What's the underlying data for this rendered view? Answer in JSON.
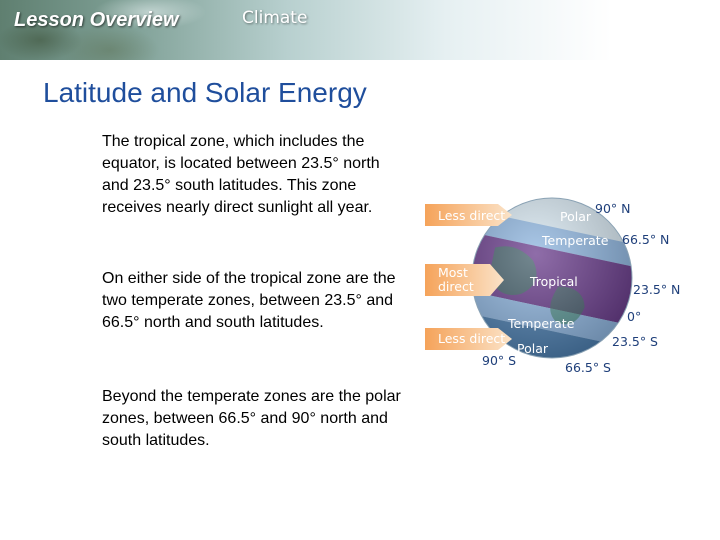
{
  "header": {
    "lesson_title": "Lesson Overview",
    "topic": "Climate"
  },
  "slide": {
    "title": "Latitude and Solar Energy",
    "paragraphs": [
      "The tropical zone, which includes the equator, is located between 23.5° north and 23.5° south latitudes. This zone receives nearly direct sunlight all year.",
      "On either side of the tropical zone are the two temperate zones, between 23.5° and 66.5° north and south latitudes.",
      "Beyond the temperate zones are the polar zones, between 66.5° and 90° north and south latitudes."
    ]
  },
  "figure": {
    "arrows": {
      "top": "Less direct",
      "middle_line1": "Most",
      "middle_line2": "direct",
      "bottom": "Less direct"
    },
    "zones": {
      "polar_north": "Polar",
      "temperate_north": "Temperate",
      "tropical": "Tropical",
      "temperate_south": "Temperate",
      "polar_south": "Polar"
    },
    "latitudes": {
      "n90": "90° N",
      "n66": "66.5° N",
      "n23": "23.5° N",
      "eq": "0°",
      "s23": "23.5° S",
      "s90": "90° S",
      "s66": "66.5° S"
    },
    "colors": {
      "arrow": "#f08a3a",
      "tropical_band": "#6a3d8c",
      "temperate_band": "#8fb6e0",
      "polar_cap": "#d8e8f2",
      "label_blue": "#1f3f7a"
    }
  }
}
